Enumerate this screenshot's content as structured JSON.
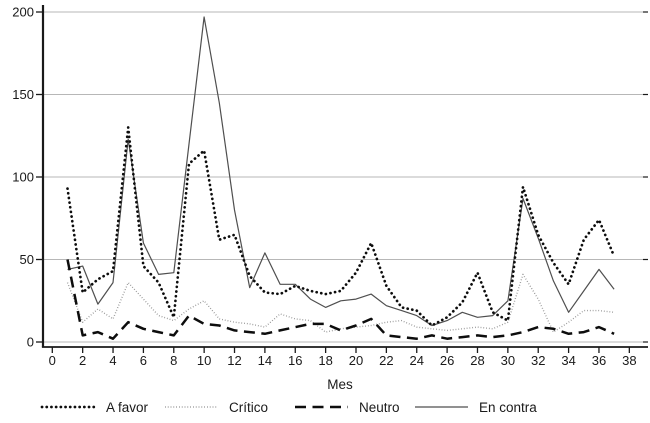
{
  "chart_data": {
    "type": "line",
    "title": "",
    "xlabel": "Mes",
    "ylabel": "",
    "xlim": [
      0,
      38
    ],
    "ylim": [
      0,
      200
    ],
    "xticks": [
      0,
      2,
      4,
      6,
      8,
      10,
      12,
      14,
      16,
      18,
      20,
      22,
      24,
      26,
      28,
      30,
      32,
      34,
      36,
      38
    ],
    "yticks": [
      0,
      50,
      100,
      150,
      200
    ],
    "grid": "horizontal",
    "gridline_color": "#b7b7b7",
    "axis_color": "#1a1a1a",
    "legend_position": "bottom",
    "months": [
      1,
      2,
      3,
      4,
      5,
      6,
      7,
      8,
      9,
      10,
      11,
      12,
      13,
      14,
      15,
      16,
      17,
      18,
      19,
      20,
      21,
      22,
      23,
      24,
      25,
      26,
      27,
      28,
      29,
      30,
      31,
      32,
      33,
      34,
      35,
      36,
      37
    ],
    "series": [
      {
        "name": "A favor",
        "style": "bold-dotted",
        "color": "#0d0d0d",
        "values": [
          93,
          30,
          38,
          43,
          130,
          46,
          36,
          15,
          108,
          116,
          62,
          65,
          40,
          30,
          29,
          34,
          31,
          29,
          31,
          42,
          60,
          34,
          21,
          19,
          10,
          15,
          24,
          42,
          18,
          13,
          94,
          65,
          48,
          35,
          62,
          74,
          52
        ]
      },
      {
        "name": "Crítico",
        "style": "fine-dotted",
        "color": "#8f8f8f",
        "values": [
          36,
          12,
          20,
          14,
          36,
          26,
          16,
          13,
          20,
          25,
          14,
          12,
          11,
          9,
          17,
          14,
          13,
          6,
          8,
          9,
          10,
          12,
          13,
          9,
          8,
          7,
          8,
          9,
          8,
          12,
          41,
          26,
          6,
          12,
          19,
          19,
          18
        ]
      },
      {
        "name": "Neutro",
        "style": "dashed",
        "color": "#0d0d0d",
        "values": [
          50,
          4,
          6,
          2,
          12,
          8,
          6,
          4,
          16,
          11,
          10,
          7,
          6,
          5,
          7,
          9,
          11,
          11,
          7,
          10,
          14,
          4,
          3,
          2,
          4,
          2,
          3,
          4,
          3,
          4,
          6,
          9,
          8,
          5,
          6,
          9,
          5
        ]
      },
      {
        "name": "En contra",
        "style": "solid",
        "color": "#4f4f4f",
        "values": [
          44,
          46,
          23,
          36,
          123,
          60,
          41,
          42,
          120,
          197,
          145,
          80,
          33,
          54,
          35,
          35,
          26,
          21,
          25,
          26,
          29,
          22,
          19,
          16,
          10,
          13,
          18,
          15,
          16,
          25,
          87,
          63,
          37,
          18,
          31,
          44,
          32
        ]
      }
    ]
  }
}
